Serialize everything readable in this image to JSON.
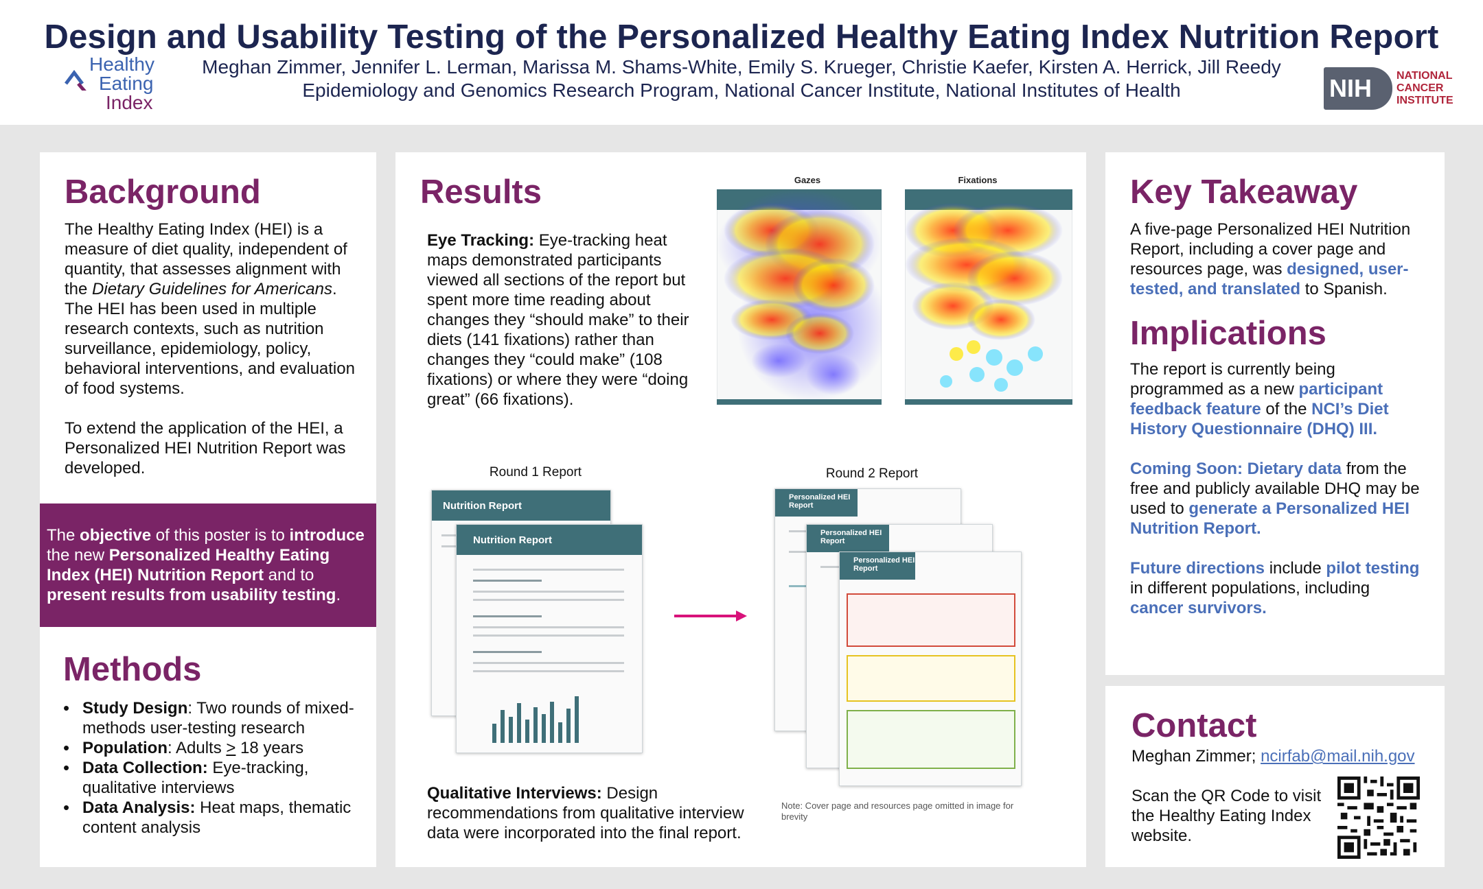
{
  "header": {
    "title": "Design and Usability Testing of the Personalized Healthy Eating Index Nutrition Report",
    "authors": "Meghan Zimmer, Jennifer L. Lerman, Marissa M. Shams-White, Emily S. Krueger, Christie Kaefer, Kirsten A. Herrick, Jill Reedy",
    "affiliation": "Epidemiology and Genomics Research Program, National Cancer Institute, National Institutes of Health",
    "hei_logo": {
      "line1": "Healthy",
      "line2": "Eating",
      "line3": "Index"
    },
    "nih_logo": {
      "box": "NIH",
      "line1": "NATIONAL",
      "line2": "CANCER",
      "line3": "INSTITUTE"
    }
  },
  "background": {
    "heading": "Background",
    "p1_a": "The Healthy Eating Index (HEI) is a measure of diet quality, independent of quantity, that assesses alignment with the ",
    "p1_italic": "Dietary Guidelines for Americans",
    "p1_b": ". The HEI has been used in multiple research contexts, such as nutrition surveillance, epidemiology, policy, behavioral interventions, and evaluation of food systems.",
    "p2": "To extend the application of the HEI, a Personalized HEI Nutrition Report was developed."
  },
  "objective": {
    "t1": "The ",
    "t2": "objective",
    "t3": " of this poster is to ",
    "t4": "introduce",
    "t5": " the new ",
    "t6": "Personalized Healthy Eating Index (HEI) Nutrition Report",
    "t7": " and to ",
    "t8": "present results from usability testing",
    "t9": "."
  },
  "methods": {
    "heading": "Methods",
    "items": [
      {
        "label": "Study Design",
        "text": ": Two rounds of mixed-methods user-testing research"
      },
      {
        "label": "Population",
        "text_a": ": Adults ",
        "underlined": ">",
        "text_b": " 18 years"
      },
      {
        "label": "Data Collection:",
        "text": " Eye-tracking, qualitative interviews"
      },
      {
        "label": "Data Analysis:",
        "text": " Heat maps, thematic content analysis"
      }
    ]
  },
  "results": {
    "heading": "Results",
    "eye_label": "Eye Tracking:",
    "eye_text": " Eye-tracking heat maps demonstrated participants viewed all sections of the report but spent more time reading about changes they “should make” to their diets (141 fixations) rather than changes they “could make” (108 fixations) or where they were “doing great” (66 fixations).",
    "heatmap_gazes_label": "Gazes",
    "heatmap_fixations_label": "Fixations",
    "round1_label": "Round 1 Report",
    "round2_label": "Round 2 Report",
    "round1_bar1": "Nutrition Report",
    "round1_bar2": "Nutrition Report",
    "round2_bar": "Personalized HEI Report",
    "qual_label": "Qualitative Interviews:",
    "qual_text": " Design recommendations from qualitative interview data were incorporated into the final report.",
    "note": "Note: Cover page and resources page omitted in image for brevity"
  },
  "key_takeaway": {
    "heading": "Key Takeaway",
    "text_a": "A five-page Personalized HEI Nutrition Report, including a cover page and resources page, was ",
    "highlight": "designed, user-tested, and translated",
    "text_b": " to Spanish."
  },
  "implications": {
    "heading": "Implications",
    "p1_a": "The report is currently being programmed as a new ",
    "p1_h1": "participant feedback feature",
    "p1_b": " of the ",
    "p1_h2": "NCI’s Diet History Questionnaire (DHQ) III.",
    "p2_h1": "Coming Soon: Dietary data",
    "p2_a": " from the free and publicly available DHQ may be used to ",
    "p2_h2": "generate a Personalized HEI Nutrition Report.",
    "p3_h1": "Future directions",
    "p3_a": " include ",
    "p3_h2": "pilot testing",
    "p3_b": " in different populations, including ",
    "p3_h3": "cancer survivors."
  },
  "contact": {
    "heading": "Contact",
    "name": "Meghan Zimmer; ",
    "email": "ncirfab@mail.nih.gov",
    "qr_text": "Scan the QR Code to visit the Healthy Eating Index website."
  },
  "colors": {
    "title": "#1c2550",
    "heading": "#7a2466",
    "highlight": "#4a6fb8",
    "objective_bg": "#7a2466",
    "teal": "#3f6f78",
    "arrow": "#d8127a"
  }
}
